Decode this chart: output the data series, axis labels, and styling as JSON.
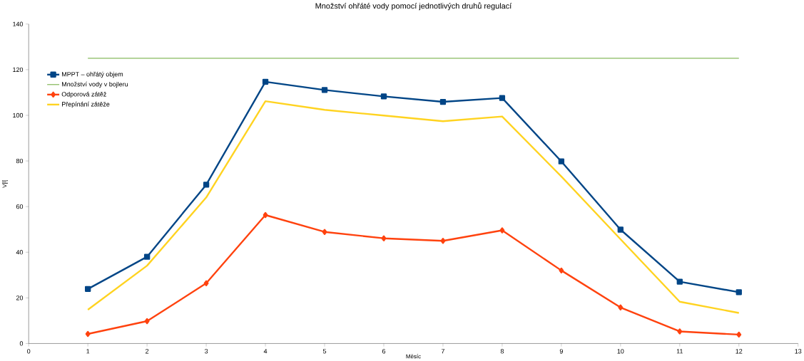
{
  "chart_data": {
    "type": "line",
    "title": "Množství ohřáté vody pomocí jednotlivých druhů regulací",
    "xlabel": "Měsíc",
    "ylabel": "V[l]",
    "xlim": [
      0,
      13
    ],
    "xticks": [
      0,
      1,
      2,
      3,
      4,
      5,
      6,
      7,
      8,
      9,
      10,
      11,
      12,
      13
    ],
    "ylim": [
      0,
      140
    ],
    "yticks": [
      0,
      20,
      40,
      60,
      80,
      100,
      120,
      140
    ],
    "grid": false,
    "legend": "top left",
    "series": [
      {
        "name": "MPPT – ohřátý objem",
        "color": "#004586",
        "marker": "square",
        "x": [
          1,
          2,
          3,
          4,
          5,
          6,
          7,
          8,
          9,
          10,
          11,
          12
        ],
        "values": [
          23.9,
          38,
          69.6,
          114.7,
          111.1,
          108.3,
          105.9,
          107.6,
          79.8,
          49.9,
          27.1,
          22.5
        ]
      },
      {
        "name": "Množství vody v bojleru",
        "color": "#579d1c",
        "marker": "none",
        "x": [
          1,
          12
        ],
        "values": [
          125,
          125
        ]
      },
      {
        "name": "Odporová zátěž",
        "color": "#ff420e",
        "marker": "diamond",
        "x": [
          1,
          2,
          3,
          4,
          5,
          6,
          7,
          8,
          9,
          10,
          11,
          12
        ],
        "values": [
          4.2,
          9.8,
          26.4,
          56.3,
          48.9,
          46.1,
          45,
          49.6,
          32,
          15.8,
          5.3,
          3.9
        ]
      },
      {
        "name": "Přepínání zátěže",
        "color": "#ffd320",
        "marker": "none",
        "x": [
          1,
          2,
          3,
          4,
          5,
          6,
          7,
          8,
          9,
          10,
          11,
          12
        ],
        "values": [
          14.8,
          34.1,
          64,
          106.2,
          102.4,
          99.9,
          97.4,
          99.5,
          73.2,
          45.7,
          18.3,
          13.4
        ]
      }
    ]
  }
}
